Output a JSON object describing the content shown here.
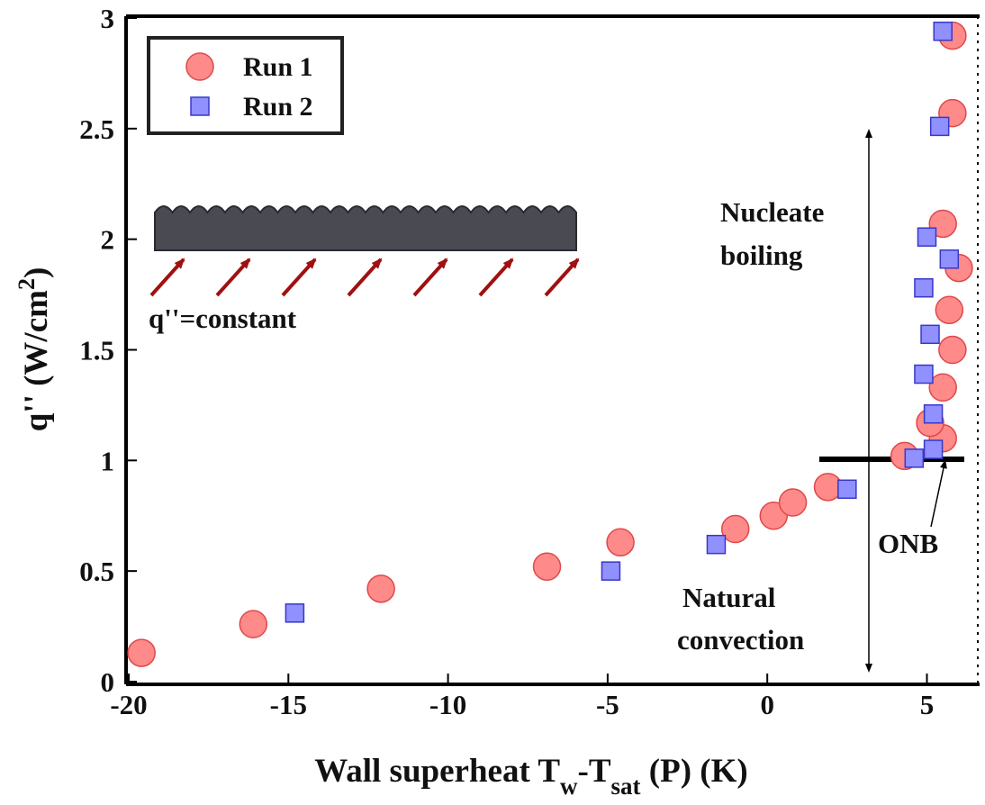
{
  "chart_data": {
    "type": "scatter",
    "xlabel": [
      "Wall superheat T",
      "w",
      "-T",
      "sat",
      " (P) (K)"
    ],
    "ylabel": [
      "q'' (W/cm",
      "2",
      ")"
    ],
    "xlim": [
      -20,
      6.65
    ],
    "ylim": [
      0,
      3
    ],
    "xticks": [
      -20,
      -15,
      -10,
      -5,
      0,
      5
    ],
    "yticks": [
      0,
      0.5,
      1,
      1.5,
      2,
      2.5,
      3
    ],
    "legend": "upper left",
    "annotations": [
      "Nucleate",
      "boiling",
      "Natural",
      "convection",
      "ONB",
      "q''=constant"
    ],
    "series": [
      {
        "name": "Run 1",
        "marker": "circle",
        "color": "#ff8a8a",
        "edge": "#e04848",
        "x": [
          -19.6,
          -16.1,
          -12.1,
          -6.9,
          -4.6,
          -1.0,
          0.2,
          0.8,
          1.9,
          4.3,
          5.5,
          5.1,
          5.5,
          5.8,
          5.7,
          6.0,
          5.5,
          5.8,
          5.8
        ],
        "values": [
          0.13,
          0.26,
          0.42,
          0.52,
          0.63,
          0.69,
          0.75,
          0.81,
          0.88,
          1.02,
          1.1,
          1.17,
          1.33,
          1.5,
          1.68,
          1.87,
          2.07,
          2.57,
          2.92
        ]
      },
      {
        "name": "Run 2",
        "marker": "square",
        "color": "#9090ff",
        "edge": "#3838c8",
        "x": [
          -14.8,
          -4.9,
          -1.6,
          2.5,
          4.6,
          5.2,
          5.2,
          4.9,
          5.1,
          4.9,
          5.7,
          5.0,
          5.4,
          5.5
        ],
        "values": [
          0.31,
          0.5,
          0.62,
          0.87,
          1.01,
          1.05,
          1.21,
          1.39,
          1.57,
          1.78,
          1.91,
          2.01,
          2.51,
          2.94
        ]
      }
    ]
  }
}
